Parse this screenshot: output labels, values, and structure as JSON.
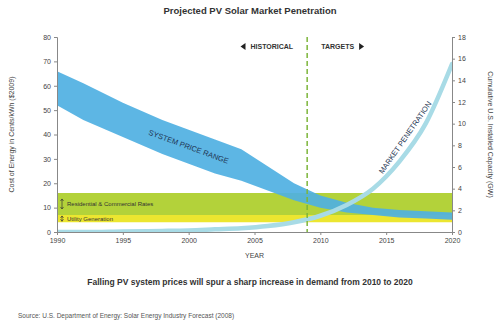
{
  "chart_data": {
    "type": "line",
    "title": "Projected PV Solar Market Penetration",
    "subtitle": "Falling PV system prices will spur a sharp increase in demand from 2010 to 2020",
    "source": "Source: U.S. Department of Energy: Solar Energy Industry Forecast (2008)",
    "xlabel": "YEAR",
    "ylabel": "Cost of Energy in Cents/kWh ($2009)",
    "y2label": "Cumulative U.S. Installed Capacity (GW)",
    "x": [
      1990,
      1992,
      1995,
      1998,
      2000,
      2002,
      2004,
      2006,
      2008,
      2010,
      2012,
      2014,
      2016,
      2018,
      2020
    ],
    "xlim": [
      1990,
      2020
    ],
    "xticks": [
      1990,
      1995,
      2000,
      2005,
      2010,
      2015,
      2020
    ],
    "ylim": [
      0,
      80
    ],
    "yticks": [
      0,
      10,
      20,
      30,
      40,
      50,
      60,
      70,
      80
    ],
    "y2lim": [
      0,
      18
    ],
    "y2ticks": [
      0,
      2,
      4,
      6,
      8,
      10,
      12,
      14,
      16,
      18
    ],
    "grid": false,
    "vline": {
      "x": 2009,
      "left_label": "HISTORICAL",
      "right_label": "TARGETS"
    },
    "series": [
      {
        "name": "Residential & Commercial Rates",
        "type": "range",
        "color": "#b3d23a",
        "values": [
          16,
          16,
          16,
          16,
          16,
          16,
          16,
          16,
          16,
          16,
          16,
          16,
          16,
          16,
          16
        ],
        "lower": [
          7,
          7,
          7,
          7,
          7,
          7,
          7,
          7,
          7,
          7,
          7,
          7,
          7,
          7,
          7
        ]
      },
      {
        "name": "Utility Generation",
        "type": "range",
        "color": "#ece630",
        "values": [
          7,
          7,
          7,
          7,
          7,
          7,
          7,
          7,
          7,
          7,
          7,
          7,
          7,
          7,
          7
        ],
        "lower": [
          4,
          4,
          4,
          4,
          4,
          4,
          4,
          4,
          4,
          4,
          4,
          4,
          4,
          4,
          4
        ]
      },
      {
        "name": "SYSTEM PRICE RANGE",
        "type": "range",
        "color": "#4fb0e2",
        "values": [
          66,
          61,
          53,
          46,
          42,
          38,
          34,
          27,
          20,
          15,
          12,
          10,
          9,
          8.5,
          8
        ],
        "lower": [
          52,
          46,
          39,
          32,
          28,
          24,
          21,
          17,
          13,
          10,
          8,
          7,
          6,
          5.5,
          5
        ]
      },
      {
        "name": "MARKET PENETRATION",
        "type": "line",
        "color": "#a8dbe6",
        "axis": "y2",
        "values": [
          0,
          0,
          0.05,
          0.1,
          0.15,
          0.25,
          0.35,
          0.55,
          0.9,
          1.5,
          2.5,
          4,
          6.5,
          10,
          15.5
        ]
      }
    ]
  }
}
